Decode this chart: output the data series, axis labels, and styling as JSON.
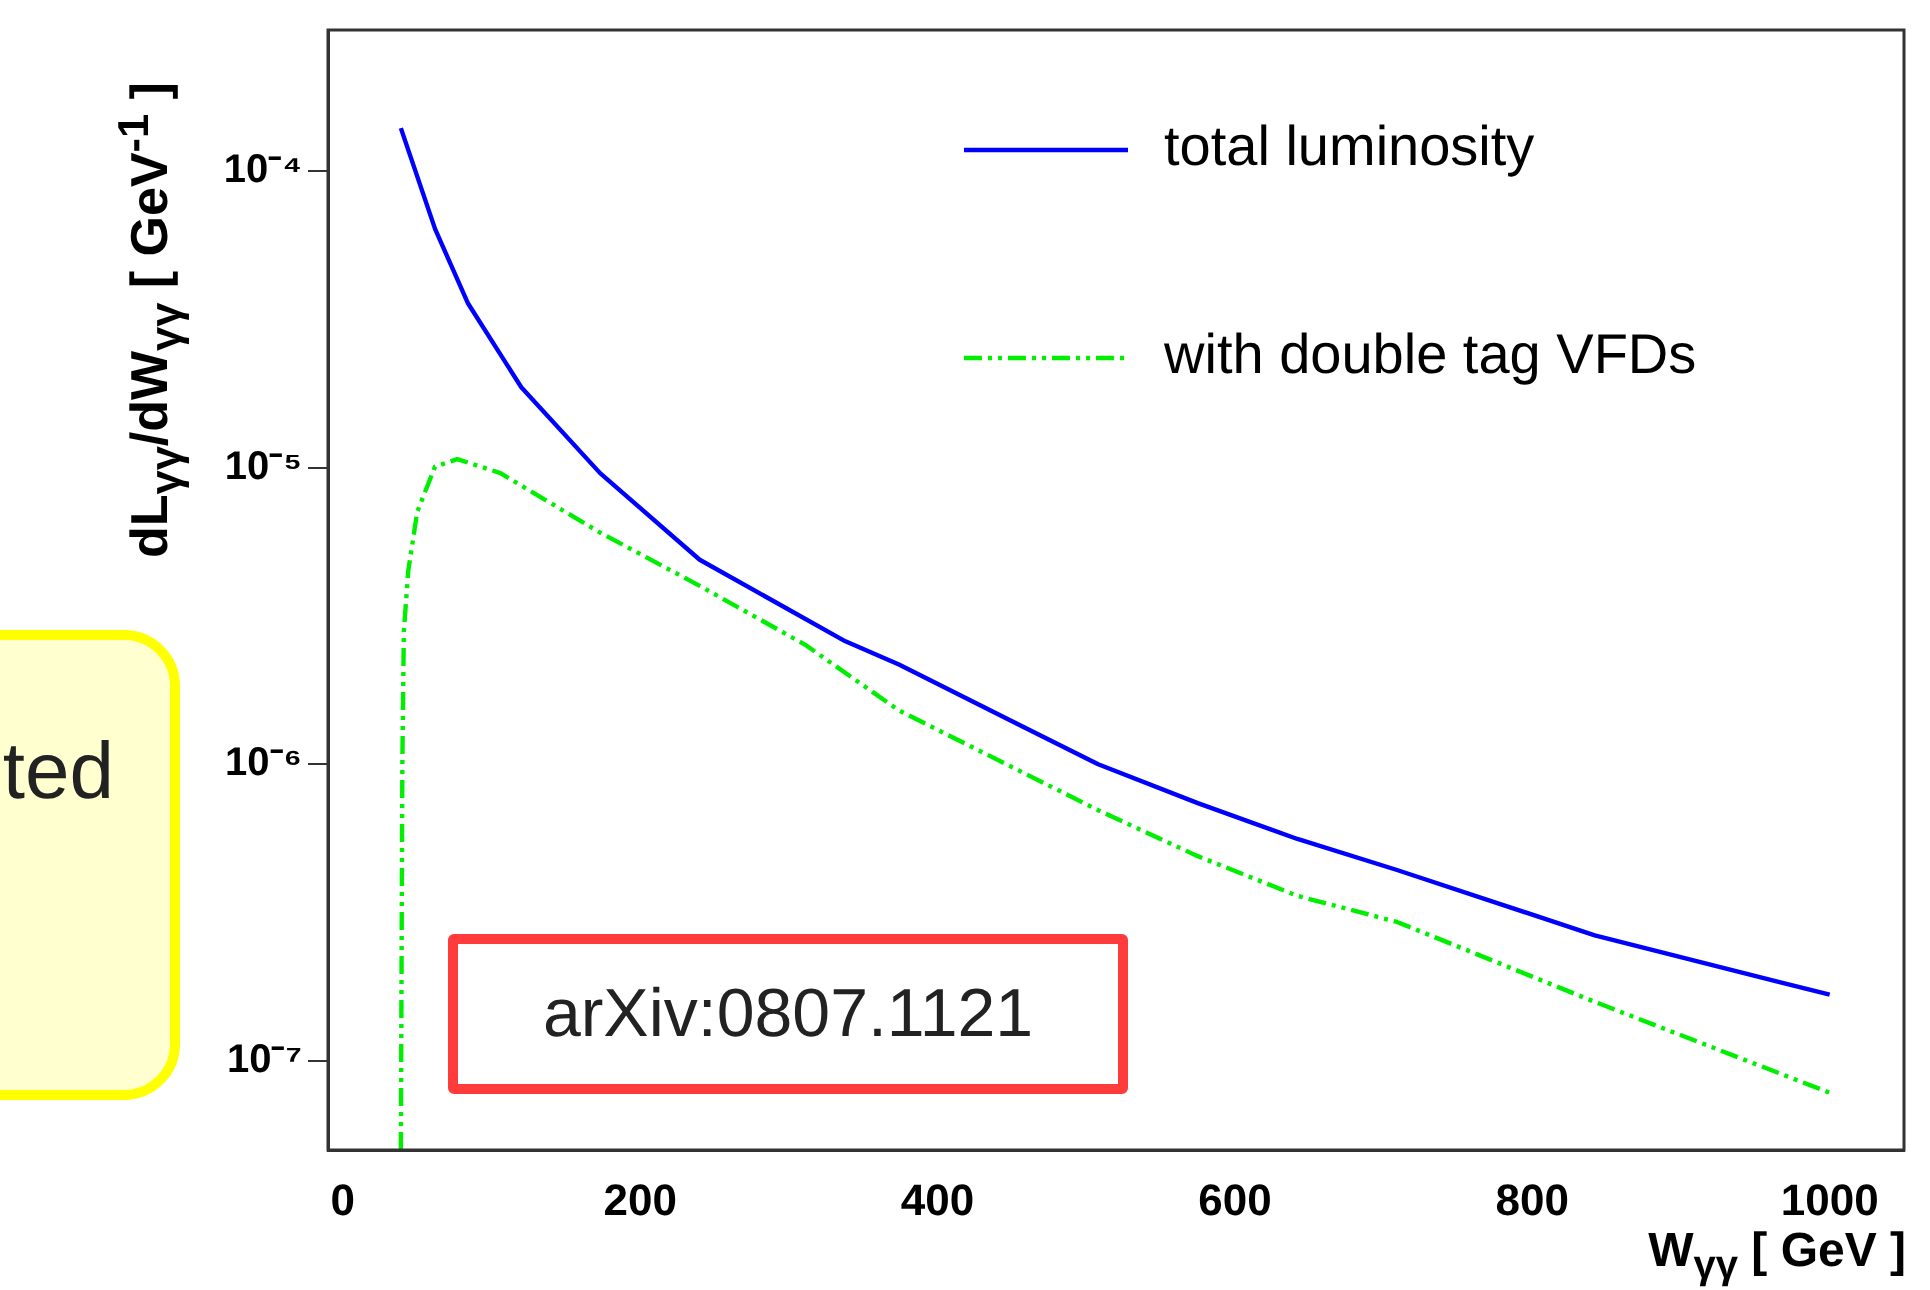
{
  "chart_data": {
    "type": "line",
    "xlabel": "W$_{γγ}$ [ GeV ]",
    "ylabel": "dL$_{γγ}$/dW$_{γγ}$ [ GeV$^{-1}$ ]",
    "xlim": [
      -10,
      1050
    ],
    "ylim": [
      5e-08,
      0.0003
    ],
    "log": "y",
    "xticks": [
      0,
      200,
      400,
      600,
      800,
      1000
    ],
    "yticks": [
      {
        "value": 1e-07,
        "label": "10⁻⁷"
      },
      {
        "value": 1e-06,
        "label": "10⁻⁶"
      },
      {
        "value": 1e-05,
        "label": "10⁻⁵"
      },
      {
        "value": 0.0001,
        "label": "10⁻⁴"
      }
    ],
    "grid": false,
    "legend": "top right",
    "marker": "none",
    "series": [
      {
        "name": "total luminosity",
        "color": "#0000ff",
        "line_style": "solid",
        "x": [
          39,
          62,
          84,
          120,
          173,
          240,
          338,
          374,
          508,
          575,
          642,
          709,
          842,
          1000
        ],
        "values": [
          0.00014,
          6.4e-05,
          3.6e-05,
          1.87e-05,
          9.6e-06,
          4.9e-06,
          2.6e-06,
          2.17e-06,
          1e-06,
          7.4e-07,
          5.6e-07,
          4.4e-07,
          2.65e-07,
          1.67e-07
        ]
      },
      {
        "name": "with double tag VFDs",
        "color": "#00ee00",
        "line_style": "dashed",
        "x": [
          39,
          40,
          41,
          44,
          50,
          62,
          77,
          106,
          173,
          240,
          311,
          374,
          508,
          575,
          642,
          709,
          842,
          1000
        ],
        "values": [
          5e-08,
          1e-06,
          2.8e-06,
          4.5e-06,
          7.1e-06,
          1.01e-05,
          1.07e-05,
          9.6e-06,
          6.05e-06,
          4e-06,
          2.53e-06,
          1.52e-06,
          7e-07,
          4.9e-07,
          3.6e-07,
          2.94e-07,
          1.58e-07,
          7.8e-08
        ]
      }
    ],
    "annotations": [
      "ted",
      "arXiv:0807.1121"
    ]
  }
}
